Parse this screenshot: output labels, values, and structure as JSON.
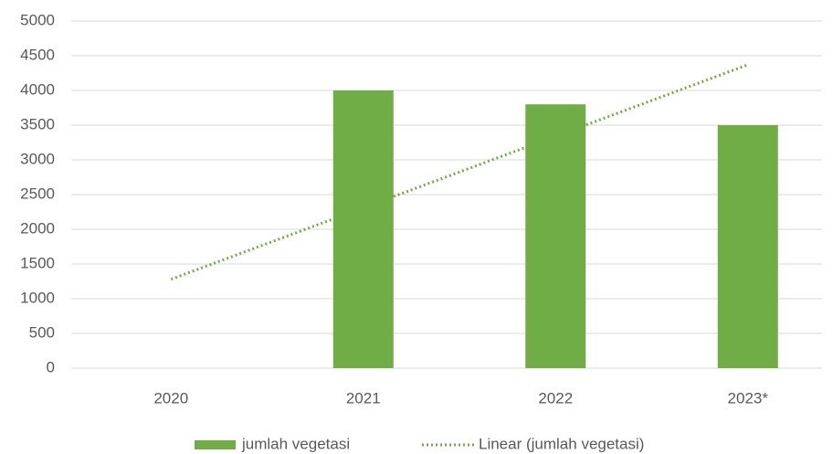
{
  "chart_data": {
    "type": "bar",
    "categories": [
      "2020",
      "2021",
      "2022",
      "2023*"
    ],
    "series": [
      {
        "name": "jumlah vegetasi",
        "color": "#70ad47",
        "values": [
          0,
          4000,
          3800,
          3500
        ]
      }
    ],
    "trendline": {
      "name": "Linear (jumlah vegetasi)",
      "color": "#70ad47",
      "values": [
        1280,
        2310,
        3340,
        4370
      ]
    },
    "ylim": [
      0,
      5000
    ],
    "yticks": [
      0,
      500,
      1000,
      1500,
      2000,
      2500,
      3000,
      3500,
      4000,
      4500,
      5000
    ],
    "grid": true,
    "legend": "bottom"
  }
}
